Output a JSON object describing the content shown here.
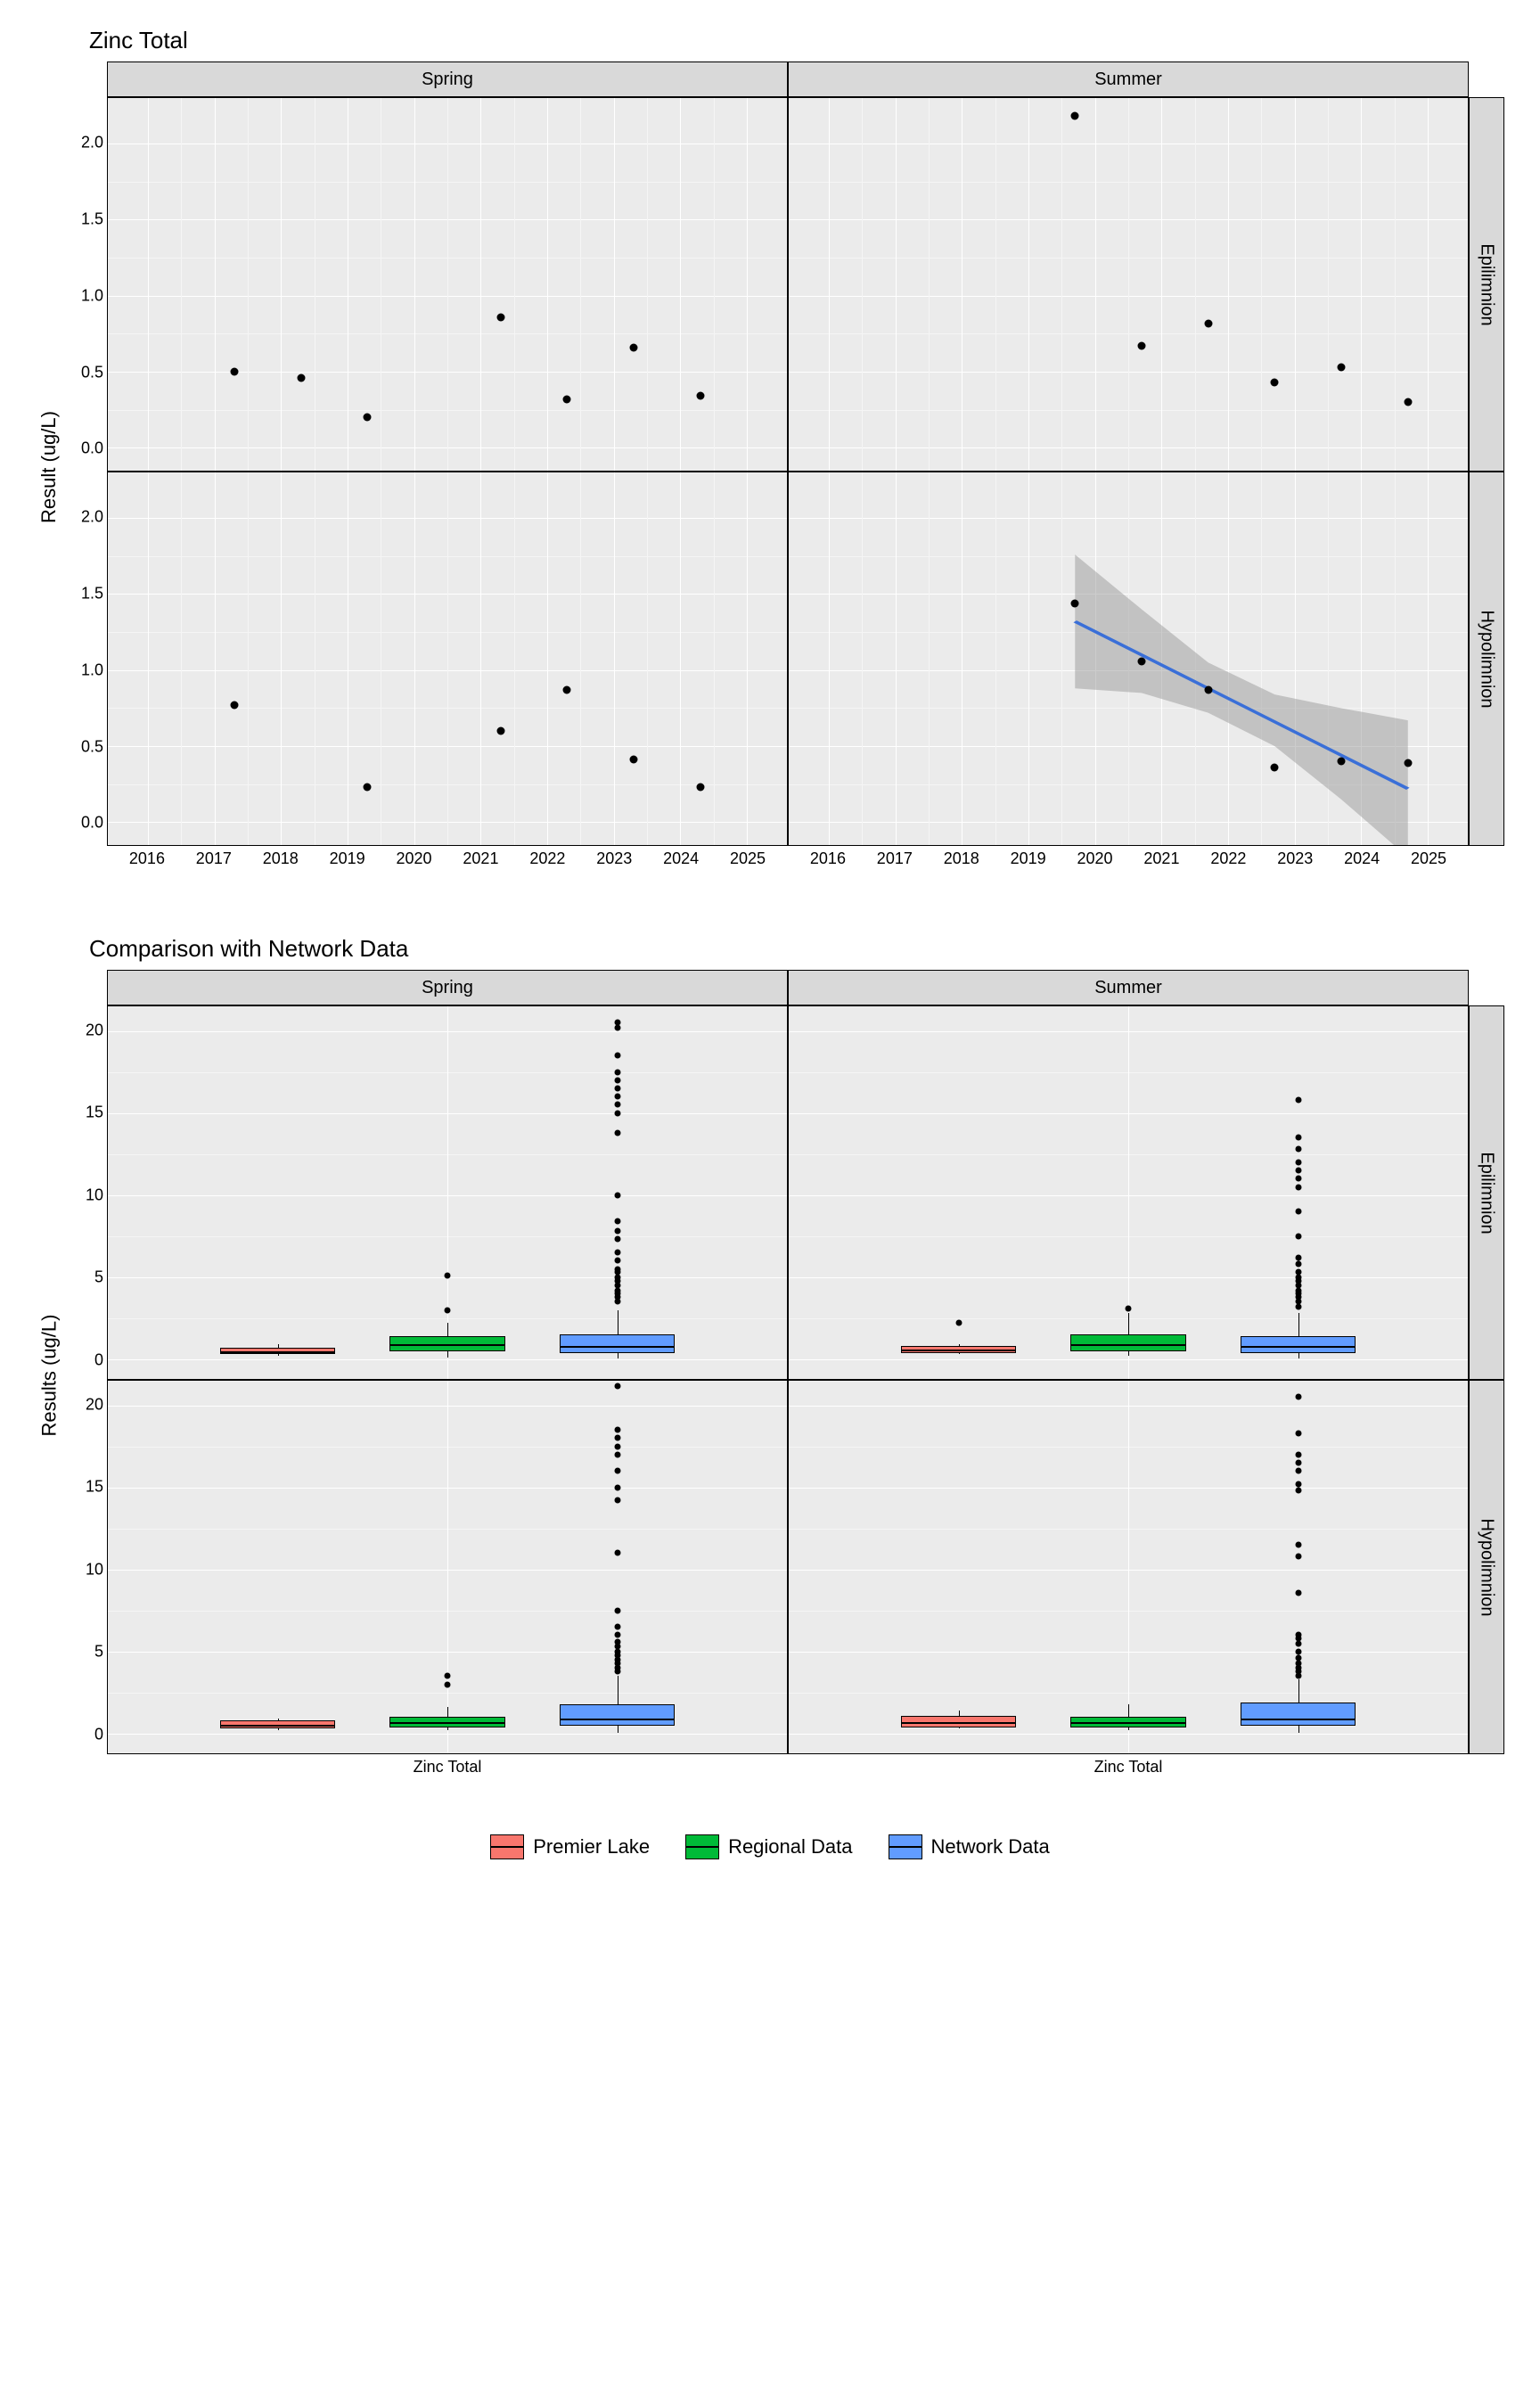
{
  "top": {
    "title": "Zinc Total",
    "ylabel": "Result (ug/L)",
    "cols": [
      "Spring",
      "Summer"
    ],
    "rows": [
      "Epilimnion",
      "Hypolimnion"
    ],
    "ylim": [
      -0.15,
      2.3
    ],
    "yticks": [
      0.0,
      0.5,
      1.0,
      1.5,
      2.0
    ],
    "xlim": [
      2015.4,
      2025.6
    ],
    "xticks": [
      2016,
      2017,
      2018,
      2019,
      2020,
      2021,
      2022,
      2023,
      2024,
      2025
    ],
    "panels": {
      "spring_epi": {
        "pts": [
          [
            2017.3,
            0.5
          ],
          [
            2018.3,
            0.46
          ],
          [
            2019.3,
            0.2
          ],
          [
            2021.3,
            0.86
          ],
          [
            2022.3,
            0.32
          ],
          [
            2023.3,
            0.66
          ],
          [
            2024.3,
            0.34
          ]
        ]
      },
      "summer_epi": {
        "pts": [
          [
            2019.7,
            2.18
          ],
          [
            2020.7,
            0.67
          ],
          [
            2021.7,
            0.82
          ],
          [
            2022.7,
            0.43
          ],
          [
            2023.7,
            0.53
          ],
          [
            2024.7,
            0.3
          ]
        ]
      },
      "spring_hypo": {
        "pts": [
          [
            2017.3,
            0.77
          ],
          [
            2019.3,
            0.23
          ],
          [
            2021.3,
            0.6
          ],
          [
            2022.3,
            0.87
          ],
          [
            2023.3,
            0.41
          ],
          [
            2024.3,
            0.23
          ]
        ]
      },
      "summer_hypo": {
        "pts": [
          [
            2019.7,
            1.44
          ],
          [
            2020.7,
            1.06
          ],
          [
            2021.7,
            0.87
          ],
          [
            2022.7,
            0.36
          ],
          [
            2023.7,
            0.4
          ],
          [
            2024.7,
            0.39
          ]
        ],
        "trend": {
          "x": [
            2019.7,
            2024.7
          ],
          "y": [
            1.32,
            0.22
          ],
          "ribbon": [
            [
              2019.7,
              0.88,
              1.76
            ],
            [
              2020.7,
              0.85,
              1.4
            ],
            [
              2021.7,
              0.72,
              1.05
            ],
            [
              2022.7,
              0.5,
              0.84
            ],
            [
              2023.7,
              0.15,
              0.75
            ],
            [
              2024.7,
              -0.23,
              0.67
            ]
          ]
        }
      }
    }
  },
  "bottom": {
    "title": "Comparison with Network Data",
    "ylabel": "Results (ug/L)",
    "cols": [
      "Spring",
      "Summer"
    ],
    "rows": [
      "Epilimnion",
      "Hypolimnion"
    ],
    "ylim": [
      -1.2,
      21.5
    ],
    "yticks": [
      0,
      5,
      10,
      15,
      20
    ],
    "xlabel": "Zinc Total",
    "groups": [
      "Premier Lake",
      "Regional Data",
      "Network Data"
    ],
    "colors": {
      "Premier Lake": "#f8766d",
      "Regional Data": "#00ba38",
      "Network Data": "#619cff"
    },
    "panels": {
      "spring_epi": {
        "boxes": [
          {
            "g": 0,
            "q1": 0.3,
            "med": 0.5,
            "q3": 0.7,
            "lo": 0.2,
            "hi": 0.9
          },
          {
            "g": 1,
            "q1": 0.5,
            "med": 0.9,
            "q3": 1.4,
            "lo": 0.1,
            "hi": 2.2,
            "out": [
              3.0,
              5.1
            ]
          },
          {
            "g": 2,
            "q1": 0.4,
            "med": 0.8,
            "q3": 1.5,
            "lo": 0.05,
            "hi": 3.0,
            "out": [
              3.5,
              3.8,
              4.0,
              4.2,
              4.5,
              4.8,
              5.0,
              5.3,
              5.5,
              6.0,
              6.5,
              7.3,
              7.8,
              8.4,
              10.0,
              13.8,
              15.0,
              15.5,
              16.0,
              16.5,
              17.0,
              17.5,
              18.5,
              20.2,
              20.5
            ]
          }
        ]
      },
      "summer_epi": {
        "boxes": [
          {
            "g": 0,
            "q1": 0.4,
            "med": 0.6,
            "q3": 0.8,
            "lo": 0.3,
            "hi": 0.9,
            "out": [
              2.2
            ]
          },
          {
            "g": 1,
            "q1": 0.5,
            "med": 0.9,
            "q3": 1.5,
            "lo": 0.2,
            "hi": 2.8,
            "out": [
              3.1
            ]
          },
          {
            "g": 2,
            "q1": 0.4,
            "med": 0.8,
            "q3": 1.4,
            "lo": 0.05,
            "hi": 2.8,
            "out": [
              3.2,
              3.5,
              3.8,
              4.0,
              4.2,
              4.5,
              4.8,
              5.0,
              5.3,
              5.8,
              6.2,
              7.5,
              9.0,
              10.5,
              11.0,
              11.5,
              12.0,
              12.8,
              13.5,
              15.8
            ]
          }
        ]
      },
      "spring_hypo": {
        "boxes": [
          {
            "g": 0,
            "q1": 0.3,
            "med": 0.5,
            "q3": 0.8,
            "lo": 0.2,
            "hi": 0.9
          },
          {
            "g": 1,
            "q1": 0.4,
            "med": 0.7,
            "q3": 1.0,
            "lo": 0.2,
            "hi": 1.6,
            "out": [
              3.0,
              3.5
            ]
          },
          {
            "g": 2,
            "q1": 0.5,
            "med": 0.9,
            "q3": 1.8,
            "lo": 0.05,
            "hi": 3.5,
            "out": [
              3.8,
              4.0,
              4.3,
              4.5,
              4.8,
              5.0,
              5.3,
              5.6,
              6.0,
              6.5,
              7.5,
              11.0,
              14.2,
              15.0,
              16.0,
              17.0,
              17.5,
              18.0,
              18.5,
              21.2
            ]
          }
        ]
      },
      "summer_hypo": {
        "boxes": [
          {
            "g": 0,
            "q1": 0.4,
            "med": 0.7,
            "q3": 1.1,
            "lo": 0.3,
            "hi": 1.4
          },
          {
            "g": 1,
            "q1": 0.4,
            "med": 0.7,
            "q3": 1.0,
            "lo": 0.2,
            "hi": 1.8
          },
          {
            "g": 2,
            "q1": 0.5,
            "med": 0.9,
            "q3": 1.9,
            "lo": 0.05,
            "hi": 3.3,
            "out": [
              3.5,
              3.8,
              4.0,
              4.3,
              4.6,
              5.0,
              5.5,
              5.8,
              6.0,
              8.6,
              10.8,
              11.5,
              14.8,
              15.2,
              16.0,
              16.5,
              17.0,
              18.3,
              20.5
            ]
          }
        ]
      }
    }
  },
  "legend": [
    {
      "label": "Premier Lake",
      "color": "#f8766d"
    },
    {
      "label": "Regional Data",
      "color": "#00ba38"
    },
    {
      "label": "Network Data",
      "color": "#619cff"
    }
  ]
}
